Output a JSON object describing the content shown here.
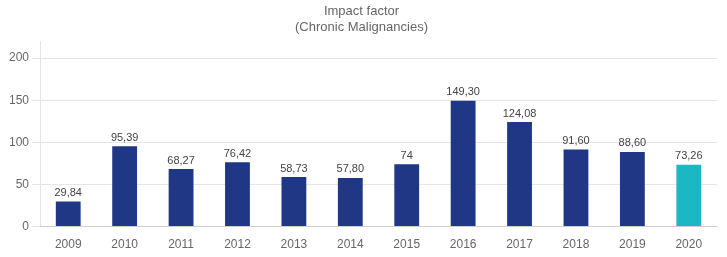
{
  "chart_data": {
    "type": "bar",
    "title": "Impact factor\n(Chronic Malignancies)",
    "categories": [
      "2009",
      "2010",
      "2011",
      "2012",
      "2013",
      "2014",
      "2015",
      "2016",
      "2017",
      "2018",
      "2019",
      "2020"
    ],
    "values": [
      29.84,
      95.39,
      68.27,
      76.42,
      58.73,
      57.8,
      74.0,
      149.3,
      124.08,
      91.6,
      88.6,
      73.26
    ],
    "value_labels": [
      "29,84",
      "95,39",
      "68,27",
      "76,42",
      "58,73",
      "57,80",
      "74",
      "149,30",
      "124,08",
      "91,60",
      "88,60",
      "73,26"
    ],
    "colors": [
      "#1F3784",
      "#1F3784",
      "#1F3784",
      "#1F3784",
      "#1F3784",
      "#1F3784",
      "#1F3784",
      "#1F3784",
      "#1F3784",
      "#1F3784",
      "#1F3784",
      "#1BB8C4"
    ],
    "ylim": [
      0,
      220
    ],
    "yticks": [
      0,
      50,
      100,
      150,
      200
    ],
    "grid": true,
    "data_labels": true
  }
}
